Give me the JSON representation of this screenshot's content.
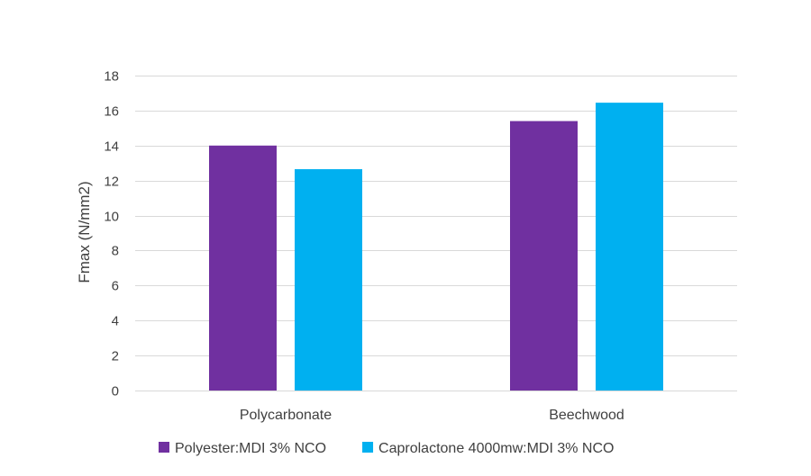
{
  "chart_data": {
    "type": "bar",
    "title": "",
    "xlabel": "",
    "ylabel": "Fmax (N/mm2)",
    "ylim": [
      0,
      18
    ],
    "ytick_step": 2,
    "categories": [
      "Polycarbonate",
      "Beechwood"
    ],
    "series": [
      {
        "name": "Polyester:MDI 3% NCO",
        "color": "#7030a0",
        "values": [
          14.0,
          15.4
        ]
      },
      {
        "name": "Caprolactone 4000mw:MDI 3% NCO",
        "color": "#00b0f0",
        "values": [
          12.65,
          16.45
        ]
      }
    ],
    "grid": true,
    "legend_position": "bottom"
  }
}
